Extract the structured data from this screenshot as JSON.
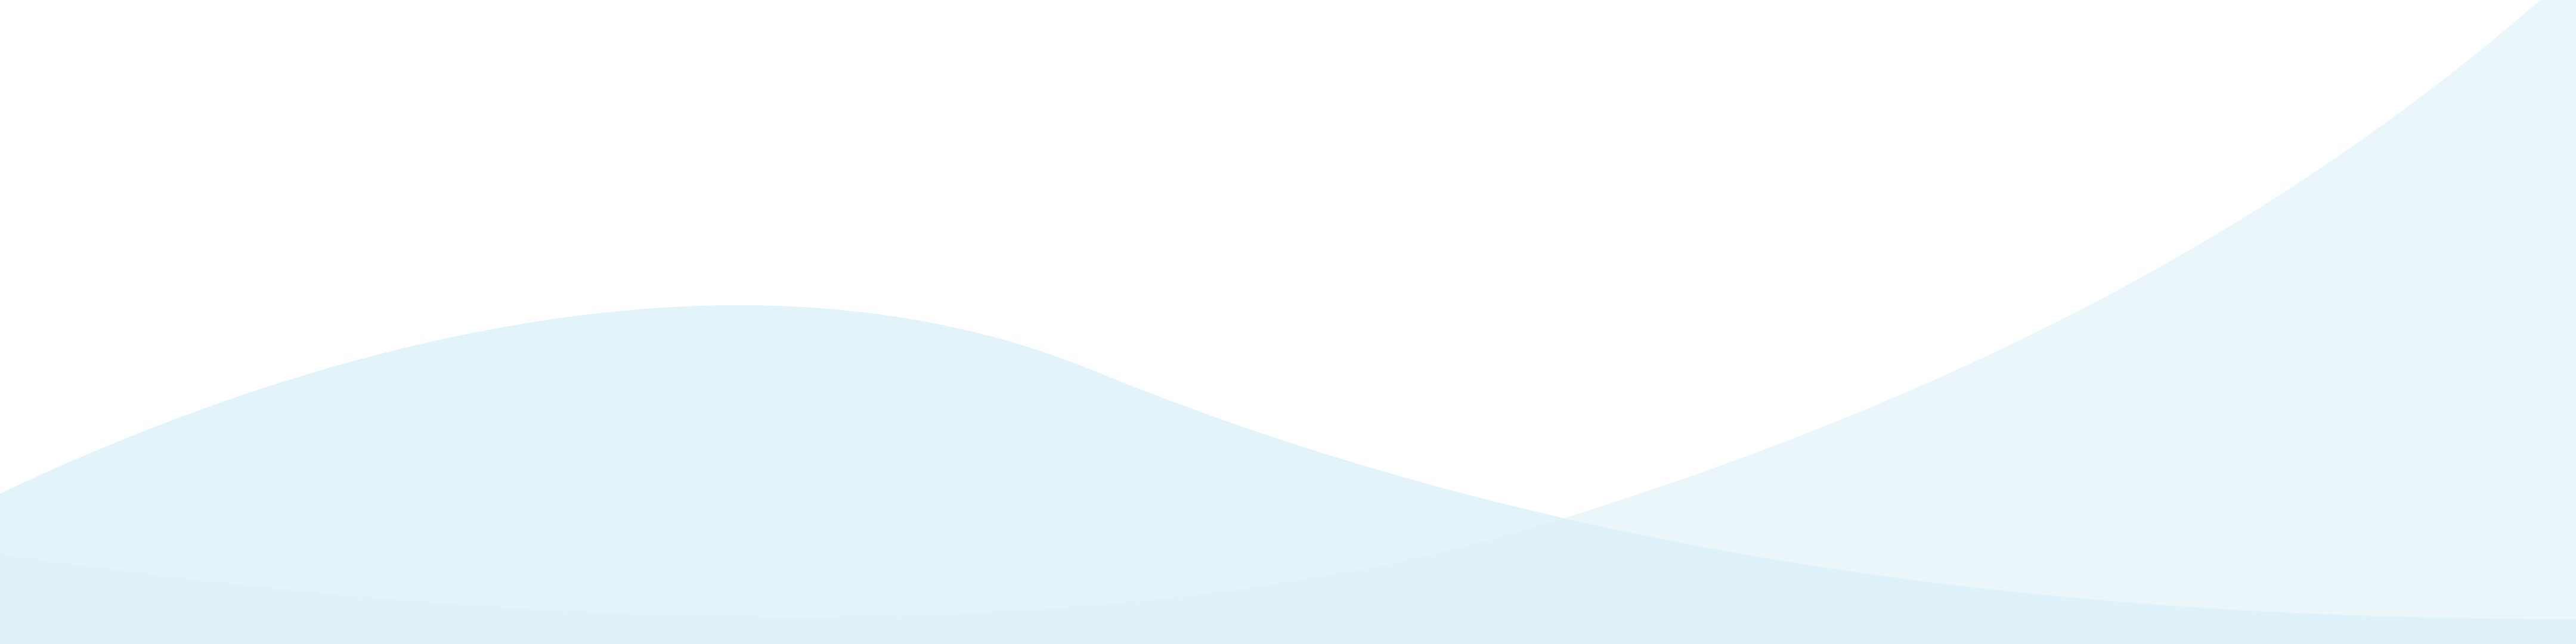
{
  "colors": {
    "background": "#ffffff",
    "wave_primary": "#e2f3f9",
    "wave_secondary": "#dcf0f8",
    "wave_overlap": "#d7eef7",
    "grid_line": "#b9c4c9"
  },
  "background": {
    "pattern": "grid",
    "wave_count": 2
  }
}
